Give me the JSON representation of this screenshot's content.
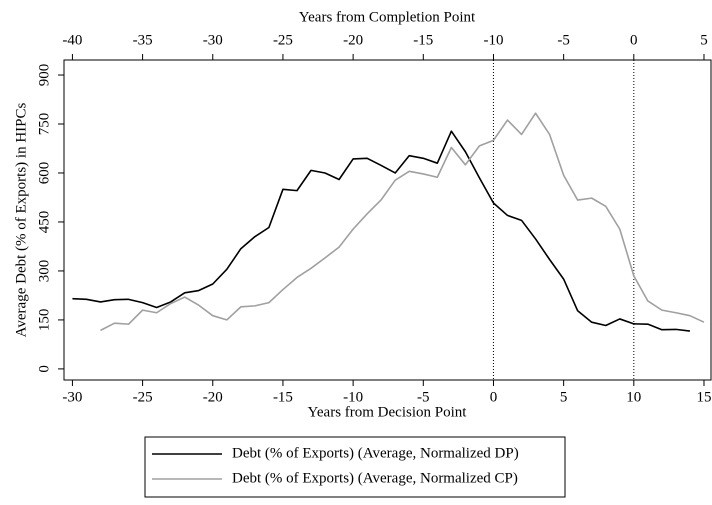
{
  "chart_data": {
    "type": "line",
    "x_label": "Years from Decision Point",
    "x2_label": "Years from Completion Point",
    "y_label": "Average Debt (% of Exports) in HIPCs",
    "x": [
      -30,
      -29,
      -28,
      -27,
      -26,
      -25,
      -24,
      -23,
      -22,
      -21,
      -20,
      -19,
      -18,
      -17,
      -16,
      -15,
      -14,
      -13,
      -12,
      -11,
      -10,
      -9,
      -8,
      -7,
      -6,
      -5,
      -4,
      -3,
      -2,
      -1,
      0,
      1,
      2,
      3,
      4,
      5,
      6,
      7,
      8,
      9,
      10,
      11,
      12,
      13,
      14,
      15
    ],
    "series": [
      {
        "name": "Debt (% of Exports) (Average, Normalized DP)",
        "color": "#000000",
        "values": [
          215,
          213,
          205,
          212,
          213,
          203,
          188,
          205,
          233,
          240,
          260,
          305,
          368,
          405,
          433,
          550,
          546,
          608,
          600,
          580,
          643,
          645,
          623,
          600,
          653,
          645,
          630,
          728,
          665,
          585,
          508,
          470,
          455,
          398,
          335,
          275,
          178,
          143,
          133,
          153,
          138,
          137,
          120,
          121,
          116,
          null
        ]
      },
      {
        "name": "Debt (% of Exports) (Average, Normalized CP)",
        "color": "#a0a0a0",
        "values": [
          null,
          null,
          118,
          140,
          137,
          180,
          172,
          200,
          220,
          195,
          163,
          150,
          190,
          193,
          203,
          243,
          280,
          308,
          340,
          373,
          428,
          475,
          518,
          578,
          605,
          597,
          587,
          678,
          625,
          683,
          700,
          762,
          718,
          783,
          718,
          593,
          517,
          523,
          498,
          428,
          285,
          208,
          180,
          172,
          163,
          143
        ]
      }
    ],
    "xlim": [
      -30.6,
      15.5
    ],
    "xticks": [
      -30,
      -25,
      -20,
      -15,
      -10,
      -5,
      0,
      5,
      10,
      15
    ],
    "x2lim": [
      -40.6,
      5.5
    ],
    "x2ticks": [
      -40,
      -35,
      -30,
      -25,
      -20,
      -15,
      -10,
      -5,
      0,
      5
    ],
    "ylim": [
      -34,
      946
    ],
    "yticks": [
      0,
      150,
      300,
      450,
      600,
      750,
      900
    ],
    "vlines": [
      0,
      10
    ]
  }
}
